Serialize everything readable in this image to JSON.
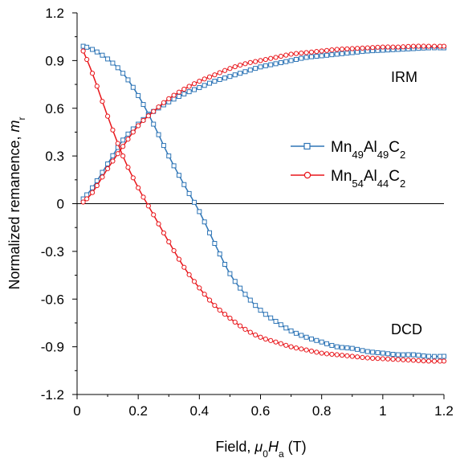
{
  "chart_data": {
    "type": "line",
    "xlabel": {
      "prefix": "Field, ",
      "sym": "μ",
      "sym_sub": "0",
      "var": "H",
      "var_sub": "a",
      "suffix": " (T)"
    },
    "ylabel": {
      "prefix": "Normalized remanence, ",
      "var": "m",
      "var_sub": "r"
    },
    "xlim": [
      0,
      1.2
    ],
    "ylim": [
      -1.2,
      1.2
    ],
    "x_ticks": [
      "0",
      "0.2",
      "0.4",
      "0.6",
      "0.8",
      "1",
      "1.2"
    ],
    "y_ticks": [
      "-1.2",
      "-0.9",
      "-0.6",
      "-0.3",
      "0",
      "0.3",
      "0.6",
      "0.9",
      "1.2"
    ],
    "grid": false,
    "legend_position": "right-middle",
    "annotations": [
      "IRM",
      "DCD"
    ],
    "series": [
      {
        "name": "Mn49Al49C2",
        "name_parts": [
          [
            "Mn",
            "49"
          ],
          [
            "Al",
            "49"
          ],
          [
            "C",
            "2"
          ]
        ],
        "color": "#2E75B6",
        "marker": "square",
        "curves": [
          {
            "label": "DCD",
            "x": [
              0.02,
              0.05,
              0.1,
              0.15,
              0.2,
              0.25,
              0.3,
              0.35,
              0.4,
              0.45,
              0.5,
              0.55,
              0.6,
              0.65,
              0.7,
              0.75,
              0.8,
              0.85,
              0.9,
              0.95,
              1.0,
              1.05,
              1.1,
              1.15,
              1.2
            ],
            "y": [
              0.99,
              0.97,
              0.91,
              0.82,
              0.68,
              0.5,
              0.3,
              0.12,
              -0.05,
              -0.25,
              -0.44,
              -0.57,
              -0.67,
              -0.74,
              -0.8,
              -0.84,
              -0.87,
              -0.9,
              -0.91,
              -0.93,
              -0.94,
              -0.95,
              -0.95,
              -0.96,
              -0.96
            ]
          },
          {
            "label": "IRM",
            "x": [
              0.02,
              0.05,
              0.1,
              0.15,
              0.2,
              0.25,
              0.3,
              0.35,
              0.4,
              0.45,
              0.5,
              0.55,
              0.6,
              0.65,
              0.7,
              0.75,
              0.8,
              0.85,
              0.9,
              0.95,
              1.0,
              1.05,
              1.1,
              1.15,
              1.2
            ],
            "y": [
              0.03,
              0.1,
              0.25,
              0.4,
              0.5,
              0.58,
              0.64,
              0.69,
              0.73,
              0.77,
              0.8,
              0.83,
              0.86,
              0.88,
              0.9,
              0.92,
              0.93,
              0.94,
              0.95,
              0.96,
              0.965,
              0.97,
              0.975,
              0.98,
              0.98
            ]
          }
        ]
      },
      {
        "name": "Mn54Al44C2",
        "name_parts": [
          [
            "Mn",
            "54"
          ],
          [
            "Al",
            "44"
          ],
          [
            "C",
            "2"
          ]
        ],
        "color": "#E8161B",
        "marker": "circle",
        "curves": [
          {
            "label": "DCD",
            "x": [
              0.02,
              0.05,
              0.1,
              0.15,
              0.2,
              0.25,
              0.3,
              0.35,
              0.4,
              0.45,
              0.5,
              0.55,
              0.6,
              0.65,
              0.7,
              0.75,
              0.8,
              0.85,
              0.9,
              0.95,
              1.0,
              1.05,
              1.1,
              1.15,
              1.2
            ],
            "y": [
              0.96,
              0.82,
              0.55,
              0.3,
              0.1,
              -0.07,
              -0.24,
              -0.4,
              -0.53,
              -0.64,
              -0.72,
              -0.79,
              -0.84,
              -0.87,
              -0.9,
              -0.92,
              -0.94,
              -0.95,
              -0.96,
              -0.97,
              -0.975,
              -0.98,
              -0.985,
              -0.99,
              -0.99
            ]
          },
          {
            "label": "IRM",
            "x": [
              0.02,
              0.05,
              0.1,
              0.15,
              0.2,
              0.25,
              0.3,
              0.35,
              0.4,
              0.45,
              0.5,
              0.55,
              0.6,
              0.65,
              0.7,
              0.75,
              0.8,
              0.85,
              0.9,
              0.95,
              1.0,
              1.05,
              1.1,
              1.15,
              1.2
            ],
            "y": [
              0.01,
              0.07,
              0.22,
              0.36,
              0.49,
              0.58,
              0.66,
              0.72,
              0.77,
              0.81,
              0.85,
              0.88,
              0.9,
              0.92,
              0.94,
              0.95,
              0.96,
              0.97,
              0.975,
              0.98,
              0.985,
              0.985,
              0.99,
              0.99,
              0.99
            ]
          }
        ]
      }
    ]
  }
}
